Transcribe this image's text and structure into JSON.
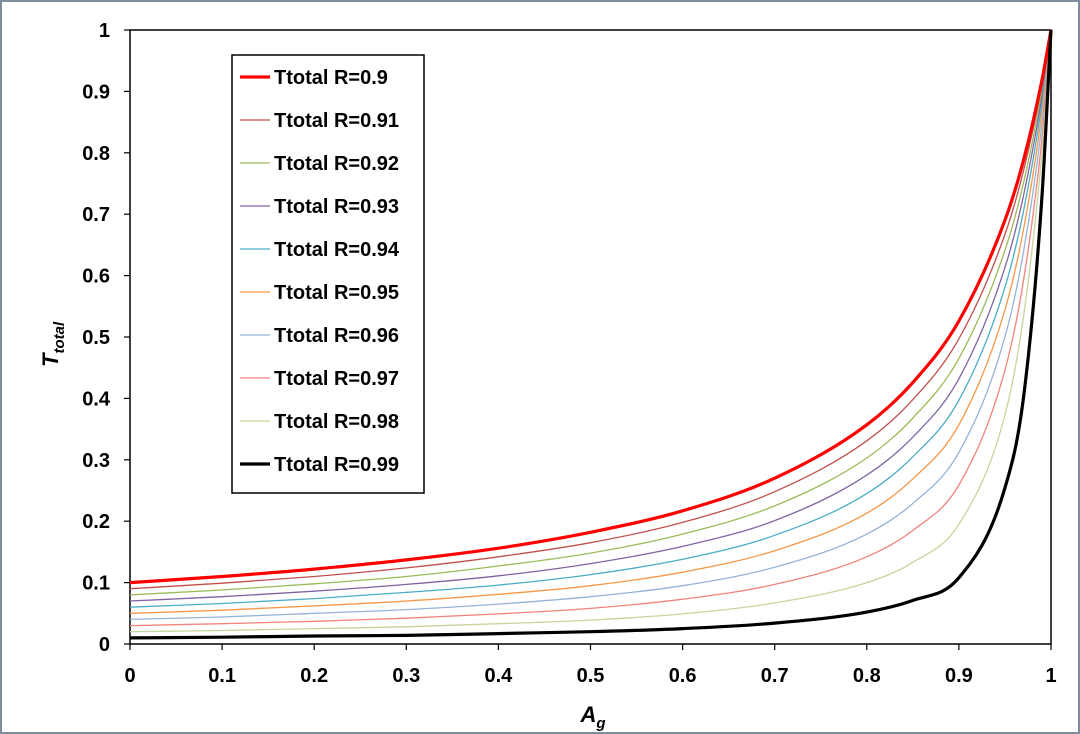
{
  "chart_data": {
    "type": "line",
    "title": "",
    "xlabel": {
      "main": "A",
      "sub": "g"
    },
    "ylabel": {
      "main": "T",
      "sub": "total"
    },
    "xlim": [
      0,
      1
    ],
    "ylim": [
      0,
      1
    ],
    "xticks": [
      "0",
      "0.1",
      "0.2",
      "0.3",
      "0.4",
      "0.5",
      "0.6",
      "0.7",
      "0.8",
      "0.9",
      "1"
    ],
    "yticks": [
      "0",
      "0.1",
      "0.2",
      "0.3",
      "0.4",
      "0.5",
      "0.6",
      "0.7",
      "0.8",
      "0.9",
      "1"
    ],
    "grid": false,
    "legend_position": "top-left",
    "x": [
      0,
      0.1,
      0.2,
      0.3,
      0.4,
      0.5,
      0.6,
      0.7,
      0.8,
      0.85,
      0.9,
      0.95,
      0.97,
      0.99,
      1
    ],
    "series": [
      {
        "name": "Ttotal R=0.9",
        "color": "#ff0000",
        "bold": true,
        "values": [
          0.1,
          0.11,
          0.122,
          0.137,
          0.156,
          0.182,
          0.217,
          0.27,
          0.357,
          0.426,
          0.526,
          0.69,
          0.787,
          0.917,
          1.0
        ]
      },
      {
        "name": "Ttotal R=0.91",
        "color": "#c0504d",
        "bold": false,
        "values": [
          0.09,
          0.099,
          0.11,
          0.124,
          0.142,
          0.165,
          0.198,
          0.248,
          0.331,
          0.398,
          0.497,
          0.667,
          0.77,
          0.909,
          1.0
        ]
      },
      {
        "name": "Ttotal R=0.92",
        "color": "#9bbb59",
        "bold": false,
        "values": [
          0.08,
          0.088,
          0.098,
          0.11,
          0.127,
          0.148,
          0.179,
          0.225,
          0.303,
          0.368,
          0.465,
          0.641,
          0.75,
          0.901,
          1.0
        ]
      },
      {
        "name": "Ttotal R=0.93",
        "color": "#8064a2",
        "bold": false,
        "values": [
          0.07,
          0.077,
          0.086,
          0.097,
          0.111,
          0.131,
          0.159,
          0.201,
          0.275,
          0.337,
          0.432,
          0.613,
          0.729,
          0.891,
          1.0
        ]
      },
      {
        "name": "Ttotal R=0.94",
        "color": "#4bacc6",
        "bold": false,
        "values": [
          0.06,
          0.066,
          0.074,
          0.084,
          0.096,
          0.113,
          0.138,
          0.177,
          0.245,
          0.305,
          0.397,
          0.581,
          0.704,
          0.879,
          1.0
        ]
      },
      {
        "name": "Ttotal R=0.95",
        "color": "#f79646",
        "bold": false,
        "values": [
          0.05,
          0.055,
          0.062,
          0.07,
          0.081,
          0.095,
          0.117,
          0.152,
          0.213,
          0.269,
          0.357,
          0.544,
          0.674,
          0.864,
          1.0
        ]
      },
      {
        "name": "Ttotal R=0.96",
        "color": "#95b3d7",
        "bold": false,
        "values": [
          0.04,
          0.044,
          0.05,
          0.056,
          0.065,
          0.077,
          0.095,
          0.125,
          0.179,
          0.229,
          0.312,
          0.5,
          0.638,
          0.845,
          1.0
        ]
      },
      {
        "name": "Ttotal R=0.97",
        "color": "#f2837d",
        "bold": false,
        "values": [
          0.03,
          0.033,
          0.037,
          0.042,
          0.049,
          0.058,
          0.073,
          0.097,
          0.142,
          0.185,
          0.259,
          0.446,
          0.591,
          0.821,
          1.0
        ]
      },
      {
        "name": "Ttotal R=0.98",
        "color": "#c3d69b",
        "bold": false,
        "values": [
          0.02,
          0.022,
          0.025,
          0.028,
          0.033,
          0.039,
          0.049,
          0.067,
          0.1,
          0.133,
          0.195,
          0.373,
          0.532,
          0.797,
          1.0
        ]
      },
      {
        "name": "Ttotal R=0.99",
        "color": "#000000",
        "bold": true,
        "values": [
          0.01,
          0.011,
          0.013,
          0.014,
          0.017,
          0.02,
          0.025,
          0.034,
          0.052,
          0.071,
          0.108,
          0.254,
          0.4,
          0.725,
          1.0
        ]
      }
    ]
  }
}
